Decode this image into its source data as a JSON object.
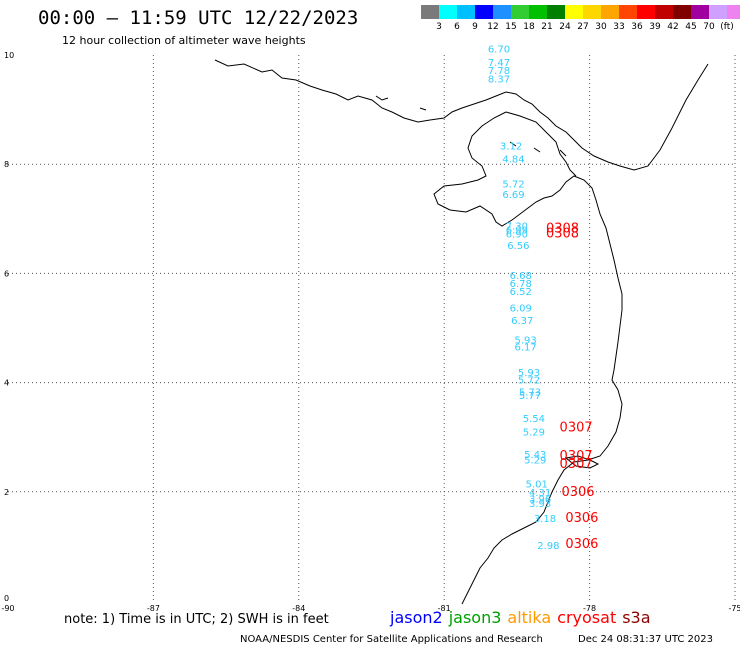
{
  "title": "00:00 – 11:59 UTC 12/22/2023",
  "subtitle": "12 hour collection of altimeter wave heights",
  "color_scale": {
    "swatches": [
      "#7a7a7a",
      "#00ffff",
      "#00bfff",
      "#0000ff",
      "#1e90ff",
      "#32cd32",
      "#00c000",
      "#008000",
      "#ffff00",
      "#ffd700",
      "#ffa500",
      "#ff4500",
      "#ff0000",
      "#c00000",
      "#800000",
      "#a000a0",
      "#d0a0ff",
      "#ee82ee",
      "#000000"
    ],
    "labels": [
      "3",
      "6",
      "9",
      "12",
      "15",
      "18",
      "21",
      "24",
      "27",
      "30",
      "33",
      "36",
      "39",
      "42",
      "45",
      "70",
      "(ft)"
    ]
  },
  "axes": {
    "x_ticks": [
      "-90",
      "-87",
      "-84",
      "-81",
      "-78",
      "-75"
    ],
    "y_ticks": [
      "0",
      "2",
      "4",
      "6",
      "8",
      "10"
    ]
  },
  "observations": {
    "color_track": "#33ccff",
    "color_times": "#ff0000",
    "wave_heights": [
      {
        "t": "6.70",
        "lon": -80.1,
        "lat": 10.05
      },
      {
        "t": "7.47",
        "lon": -80.1,
        "lat": 9.8
      },
      {
        "t": "7.78",
        "lon": -80.1,
        "lat": 9.65
      },
      {
        "t": "8.37",
        "lon": -80.1,
        "lat": 9.5
      },
      {
        "t": "3.12",
        "lon": -79.85,
        "lat": 8.27
      },
      {
        "t": "4.84",
        "lon": -79.8,
        "lat": 8.03
      },
      {
        "t": "5.72",
        "lon": -79.8,
        "lat": 7.57
      },
      {
        "t": "6.69",
        "lon": -79.8,
        "lat": 7.38
      },
      {
        "t": "7.30",
        "lon": -79.73,
        "lat": 6.8
      },
      {
        "t": "6.99",
        "lon": -79.73,
        "lat": 6.73
      },
      {
        "t": "6.90",
        "lon": -79.73,
        "lat": 6.66
      },
      {
        "t": "6.56",
        "lon": -79.7,
        "lat": 6.45
      },
      {
        "t": "6.68",
        "lon": -79.65,
        "lat": 5.9
      },
      {
        "t": "6.78",
        "lon": -79.65,
        "lat": 5.75
      },
      {
        "t": "6.52",
        "lon": -79.65,
        "lat": 5.6
      },
      {
        "t": "6.09",
        "lon": -79.65,
        "lat": 5.3
      },
      {
        "t": "6.37",
        "lon": -79.62,
        "lat": 5.07
      },
      {
        "t": "5.93",
        "lon": -79.55,
        "lat": 4.72
      },
      {
        "t": "6.17",
        "lon": -79.55,
        "lat": 4.59
      },
      {
        "t": "5.93",
        "lon": -79.48,
        "lat": 4.12
      },
      {
        "t": "5.72",
        "lon": -79.48,
        "lat": 3.98
      },
      {
        "t": "5.73",
        "lon": -79.46,
        "lat": 3.76
      },
      {
        "t": "5.77",
        "lon": -79.46,
        "lat": 3.7
      },
      {
        "t": "5.54",
        "lon": -79.38,
        "lat": 3.28
      },
      {
        "t": "5.29",
        "lon": -79.38,
        "lat": 3.03
      },
      {
        "t": "5.43",
        "lon": -79.35,
        "lat": 2.62
      },
      {
        "t": "5.29",
        "lon": -79.35,
        "lat": 2.52
      },
      {
        "t": "5.01",
        "lon": -79.32,
        "lat": 2.08
      },
      {
        "t": "4.31",
        "lon": -79.25,
        "lat": 1.92
      },
      {
        "t": "3.96",
        "lon": -79.25,
        "lat": 1.8
      },
      {
        "t": "3.93",
        "lon": -79.25,
        "lat": 1.72
      },
      {
        "t": "3.18",
        "lon": -79.15,
        "lat": 1.45
      },
      {
        "t": "2.98",
        "lon": -79.08,
        "lat": 0.95
      }
    ],
    "times": [
      {
        "t": "0308",
        "lon": -78.9,
        "lat": 6.75
      },
      {
        "t": "0308",
        "lon": -78.9,
        "lat": 6.66
      },
      {
        "t": "0307",
        "lon": -78.62,
        "lat": 3.1
      },
      {
        "t": "0307",
        "lon": -78.62,
        "lat": 2.58
      },
      {
        "t": "0307",
        "lon": -78.62,
        "lat": 2.44
      },
      {
        "t": "0306",
        "lon": -78.58,
        "lat": 1.92
      },
      {
        "t": "0306",
        "lon": -78.5,
        "lat": 1.45
      },
      {
        "t": "0306",
        "lon": -78.5,
        "lat": 0.97
      }
    ]
  },
  "note": "note: 1) Time is in UTC; 2) SWH is in feet",
  "satellites": [
    {
      "name": "jason2",
      "color": "#0000ff"
    },
    {
      "name": "jason3",
      "color": "#00a000"
    },
    {
      "name": "altika",
      "color": "#ff9900"
    },
    {
      "name": "cryosat",
      "color": "#ff0000"
    },
    {
      "name": "s3a",
      "color": "#8b0000"
    }
  ],
  "footer": {
    "credit": "NOAA/NESDIS Center for Satellite Applications and Research",
    "timestamp": "Dec 24 08:31:37 UTC 2023"
  }
}
